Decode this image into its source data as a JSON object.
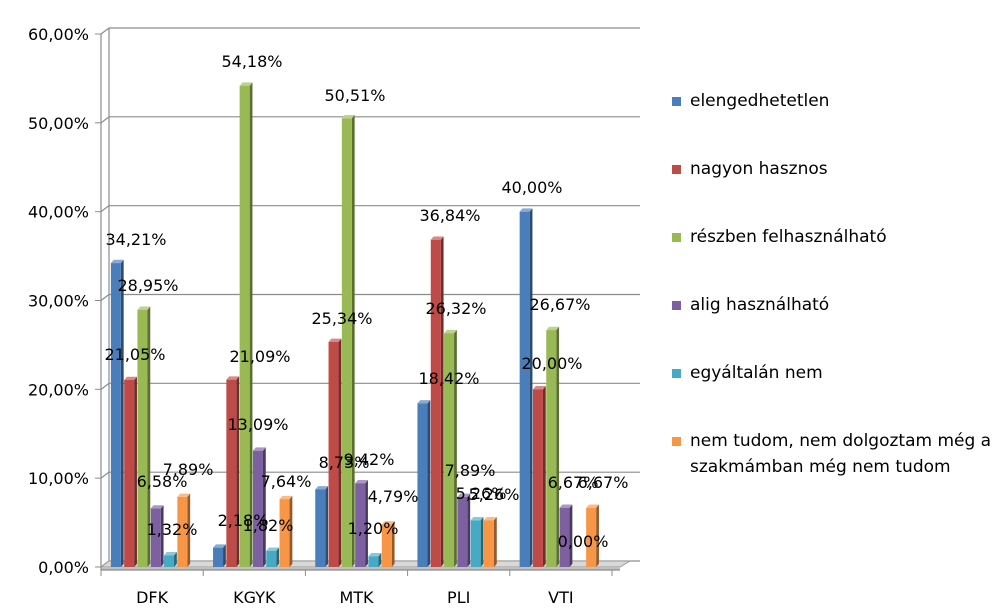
{
  "chart_data": {
    "type": "bar",
    "categories": [
      "DFK",
      "KGYK",
      "MTK",
      "PLI",
      "VTI"
    ],
    "y_ticks": [
      "0,00%",
      "10,00%",
      "20,00%",
      "30,00%",
      "40,00%",
      "50,00%",
      "60,00%"
    ],
    "ylim": [
      0,
      60
    ],
    "grid": true,
    "legend_position": "right",
    "series": [
      {
        "name": "elengedhetetlen",
        "color": "#4a7ebb",
        "values": [
          34.21,
          2.18,
          8.73,
          18.42,
          40.0
        ],
        "labels": [
          "34,21%",
          "2,18%",
          "8,73%",
          "18,42%",
          "40,00%"
        ]
      },
      {
        "name": "nagyon hasznos",
        "color": "#be4b48",
        "values": [
          21.05,
          21.09,
          25.34,
          36.84,
          20.0
        ],
        "labels": [
          "21,05%",
          "21,09%",
          "25,34%",
          "36,84%",
          "20,00%"
        ]
      },
      {
        "name": "részben felhasználható",
        "color": "#98b954",
        "values": [
          28.95,
          54.18,
          50.51,
          26.32,
          26.67
        ],
        "labels": [
          "28,95%",
          "54,18%",
          "50,51%",
          "26,32%",
          "26,67%"
        ]
      },
      {
        "name": "alig használható",
        "color": "#7d60a0",
        "values": [
          6.58,
          13.09,
          9.42,
          7.89,
          6.67
        ],
        "labels": [
          "6,58%",
          "13,09%",
          "9,42%",
          "7,89%",
          "6,67%"
        ]
      },
      {
        "name": "egyáltalán nem",
        "color": "#46aac5",
        "values": [
          1.32,
          1.82,
          1.2,
          5.26,
          0.0
        ],
        "labels": [
          "1,32%",
          "1,82%",
          "1,20%",
          "5,26%",
          "0,00%"
        ]
      },
      {
        "name": "nem tudom, nem dolgoztam még a szakmámban még nem tudom",
        "color": "#f79646",
        "values": [
          7.89,
          7.64,
          4.79,
          5.26,
          6.67
        ],
        "labels": [
          "7,89%",
          "7,64%",
          "4,79%",
          "5,26%",
          "6,67%"
        ]
      }
    ]
  }
}
